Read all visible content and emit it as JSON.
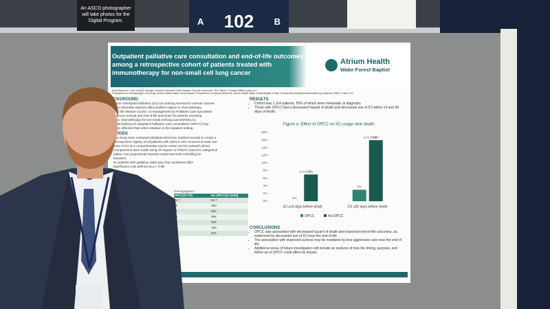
{
  "signs": {
    "photographer": "An ASCO photographer will take photos for the Digital Program.",
    "board_letter_left": "A",
    "board_number": "102",
    "board_letter_right": "B"
  },
  "poster": {
    "title": "Outpatient palliative care consultation and end-of-life outcomes among a retrospective cohort of patients treated with immunotherapy for non-small cell lung cancer",
    "brand": {
      "name": "Atrium Health",
      "sub": "Wake Forest Baptist"
    },
    "authors": "Dana Bloomer¹, John Hurley¹, Morgan Lehman¹, Kenneth Park², Andrew Thomas Faucheux², Eric Olson², Thomas William Lycan Jr.²",
    "affiliations": "¹Department of Hematology & Oncology, Atrium Health Wake Forest Baptist; ²Department of Internal Medicine, Atrium Health Wake Forest Baptist. Email: Chance.Bloomer@advocatehealth.org. Abstract 12082, Poster 102",
    "background": {
      "heading": "CKGROUND",
      "lines": [
        "mune checkpoint inhibitors (ICI) can prolong survival for various cancers",
        "have favorable adverse effect profiles relative to chemotherapy.",
        "ly in the disease course, co-management by Palliative Care specialists",
        "improve survival and end of life outcomes for patients receiving",
        "toxic chemotherapy for non-small cell lung cancer(NSCLC).",
        "initial delivery of outpatient Palliative Care consultation (OPCC) may",
        "more effective than when initiation in the inpatient setting."
      ]
    },
    "methods": {
      "heading": "THODS",
      "lines": [
        "Our study team reviewed individual electronic medical records to create a",
        "retrospective registry of all patients with NSCLC who received at least one",
        "dose of ICI at a comprehensive cancer center and its outreach clinics.",
        "Comparisons were made using chi-square or Fisher's exact for categorical",
        "iables. Cox proportional hazards model was built controlling for",
        "founders.",
        "for patients with palliative visits was only considered after",
        "significance was defined as p < 0.05"
      ]
    },
    "table": {
      "caption": "Demographics",
      "header": [
        "OPCC(n=70)",
        "No OPCC(n=1044)"
      ],
      "rows": [
        [
          "61.7",
          "64.7"
        ],
        [
          "23",
          "480"
        ],
        [
          "47",
          "560"
        ],
        [
          "29",
          "394"
        ],
        [
          "36",
          "599"
        ],
        [
          "11",
          "158"
        ],
        [
          "34",
          "526"
        ]
      ]
    },
    "results": {
      "heading": "RESULTS",
      "bullets": [
        "Cohort was 1,114 patients, 55% of which were metastatic at diagnosis",
        "Those with OPCC had a decreased hazard of death and decreased use of ICI within 14 and 30 days of death."
      ]
    },
    "figure": {
      "type": "bar",
      "title": "Figure a. Effect of OPCC on ICI usage near death",
      "categories": [
        "ICI ≤14 days before death",
        "ICI ≤30 days before death"
      ],
      "series": [
        {
          "name": "OPCC",
          "color": "#2c8474",
          "values": [
            0,
            3
          ],
          "value_labels": [
            "0%",
            "3%"
          ]
        },
        {
          "name": "No OPCC",
          "color": "#1b5a50",
          "values": [
            7,
            16
          ],
          "value_labels": [
            "7%",
            "16%"
          ]
        }
      ],
      "p_values": [
        "p=0.003",
        "p=0.0018"
      ],
      "ylim": [
        0,
        18
      ],
      "yticks": [
        {
          "value": 0,
          "label": "0%"
        },
        {
          "value": 2,
          "label": "2%"
        },
        {
          "value": 4,
          "label": "4%"
        },
        {
          "value": 6,
          "label": "6%"
        },
        {
          "value": 8,
          "label": "8%"
        },
        {
          "value": 10,
          "label": "10%"
        },
        {
          "value": 12,
          "label": "12%"
        },
        {
          "value": 14,
          "label": "14%"
        },
        {
          "value": 16,
          "label": "16%"
        },
        {
          "value": 18,
          "label": "18%"
        }
      ]
    },
    "conclusions": {
      "heading": "CONCLUSIONS",
      "bullets": [
        "OPCC was associated with decreased hazard of death and improved end-of-life outcomes, as evidenced by decreased use of ICI near the end of life.",
        "The association with improved survival may be mediated by less aggressive care near the end of life.",
        "Additional areas of future investigation will include an analysis of how the timing, purpose, and follow up of OPCC could affect its impact."
      ]
    }
  }
}
